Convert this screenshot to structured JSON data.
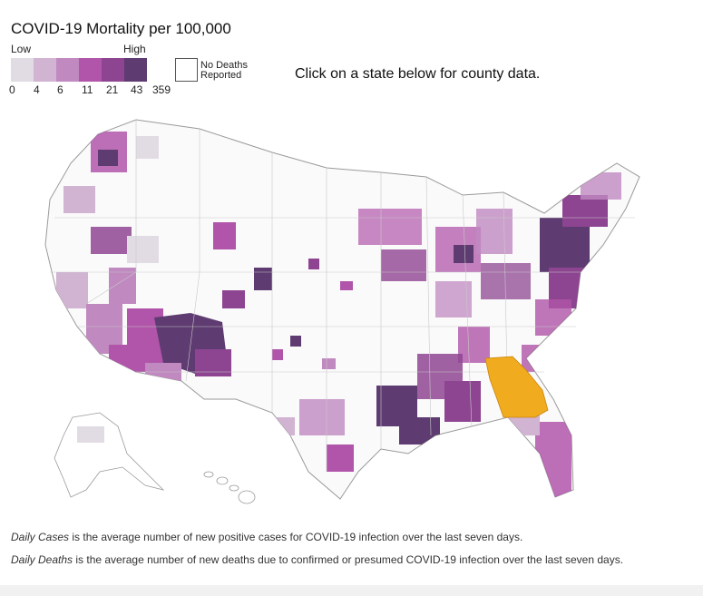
{
  "legend": {
    "title": "COVID-19 Mortality per 100,000",
    "low_label": "Low",
    "high_label": "High",
    "bins": [
      {
        "label": "0",
        "color": "#e1dce3"
      },
      {
        "label": "4",
        "color": "#d1b3d2"
      },
      {
        "label": "6",
        "color": "#c089c0"
      },
      {
        "label": "11",
        "color": "#b055a9"
      },
      {
        "label": "21",
        "color": "#8e4591"
      },
      {
        "label": "43",
        "color": "#5e3b71"
      }
    ],
    "max_label": "359",
    "no_deaths_line1": "No Deaths",
    "no_deaths_line2": "Reported",
    "no_deaths_color": "#ffffff"
  },
  "instruction": "Click on a state below for county data.",
  "map": {
    "highlighted_state": "Georgia",
    "highlight_color": "#f0ab1e"
  },
  "notes": {
    "cases_term": "Daily Cases",
    "cases_text": " is the average number of new positive cases for COVID-19 infection over the last seven days.",
    "deaths_term": "Daily Deaths",
    "deaths_text": " is the average number of new deaths due to confirmed or presumed COVID-19 infection over the last seven days."
  }
}
